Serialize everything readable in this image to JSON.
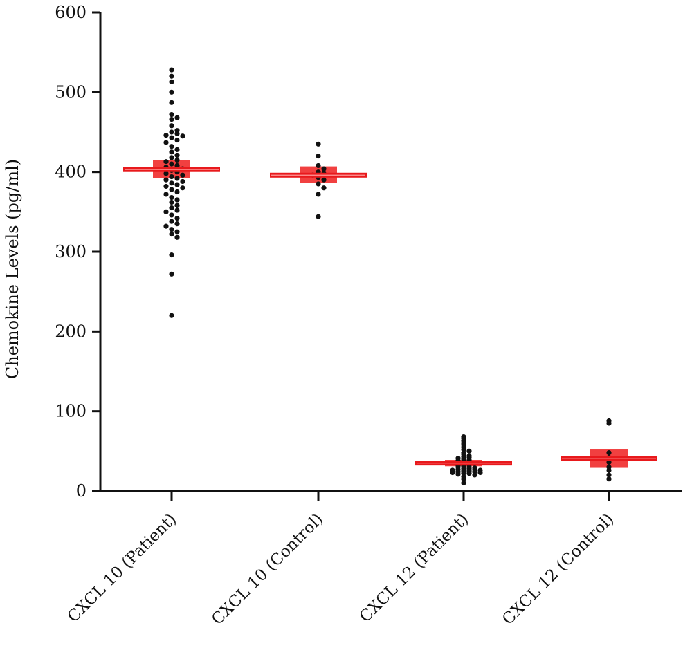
{
  "chart_data": {
    "type": "scatter",
    "title": "",
    "xlabel": "",
    "ylabel": "Chemokine Levels (pg/ml)",
    "ylim": [
      0,
      600
    ],
    "yticks": [
      0,
      100,
      200,
      300,
      400,
      500,
      600
    ],
    "grid": false,
    "categories": [
      "CXCL 10 (Patient)",
      "CXCL 10 (Control)",
      "CXCL 12 (Patient)",
      "CXCL 12 (Control)"
    ],
    "colors": {
      "points": "#111111",
      "mean_bar": "#e8191c",
      "error_box": "#f03030"
    },
    "groups": [
      {
        "name": "CXCL 10 (Patient)",
        "mean": 403,
        "err_low": 392,
        "err_high": 415,
        "values": [
          528,
          520,
          513,
          500,
          487,
          472,
          468,
          466,
          458,
          452,
          450,
          448,
          446,
          445,
          443,
          440,
          437,
          432,
          428,
          425,
          421,
          418,
          415,
          413,
          410,
          408,
          406,
          404,
          402,
          400,
          398,
          396,
          394,
          392,
          390,
          388,
          386,
          384,
          382,
          380,
          378,
          375,
          372,
          368,
          365,
          362,
          358,
          355,
          352,
          350,
          346,
          342,
          338,
          335,
          332,
          328,
          325,
          322,
          318,
          296,
          272,
          220
        ]
      },
      {
        "name": "CXCL 10 (Control)",
        "mean": 396,
        "err_low": 386,
        "err_high": 407,
        "values": [
          435,
          420,
          408,
          404,
          400,
          398,
          396,
          393,
          390,
          385,
          380,
          372,
          344
        ]
      },
      {
        "name": "CXCL 12 (Patient)",
        "mean": 35,
        "err_low": 31,
        "err_high": 39,
        "values": [
          68,
          66,
          63,
          60,
          58,
          55,
          52,
          50,
          48,
          46,
          44,
          43,
          42,
          41,
          40,
          39,
          38,
          37,
          36,
          35,
          34,
          33,
          32,
          31,
          30,
          30,
          29,
          28,
          28,
          27,
          27,
          26,
          26,
          25,
          25,
          24,
          24,
          23,
          23,
          22,
          22,
          21,
          20,
          18,
          15,
          10
        ]
      },
      {
        "name": "CXCL 12 (Control)",
        "mean": 41,
        "err_low": 29,
        "err_high": 52,
        "values": [
          88,
          85,
          48,
          42,
          36,
          30,
          26,
          20,
          15
        ]
      }
    ]
  }
}
